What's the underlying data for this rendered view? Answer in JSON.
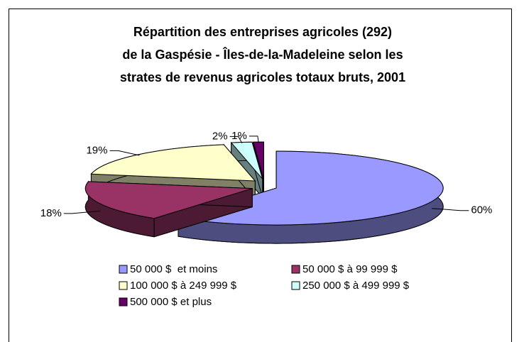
{
  "chart_data": {
    "type": "pie",
    "title": [
      "Répartition des entreprises agricoles (292)",
      "de la Gaspésie - Îles-de-la-Madeleine selon les",
      "strates de revenus agricoles totaux bruts, 2001"
    ],
    "categories": [
      "50 000 $  et moins",
      "50 000 $ à 99 999 $",
      "100 000 $ à 249 999 $",
      "250 000 $ à 499 999 $",
      "500 000 $ et plus"
    ],
    "values": [
      60,
      18,
      19,
      2,
      1
    ],
    "value_labels": [
      "60%",
      "18%",
      "19%",
      "2%",
      "1%"
    ],
    "colors": [
      "#9999ff",
      "#993366",
      "#ffffcc",
      "#ccffff",
      "#660066"
    ],
    "legend": "bottom"
  }
}
